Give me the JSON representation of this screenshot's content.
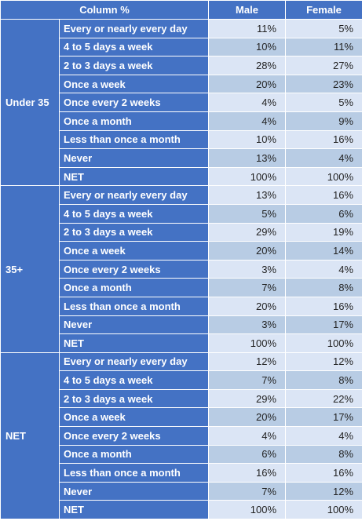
{
  "chart_data": {
    "type": "table",
    "corner_label": "Column %",
    "columns": [
      "Male",
      "Female"
    ],
    "groups": [
      {
        "name": "Under 35",
        "rows": [
          {
            "label": "Every or nearly every day",
            "values": [
              "11%",
              "5%"
            ]
          },
          {
            "label": "4 to 5 days a week",
            "values": [
              "10%",
              "11%"
            ]
          },
          {
            "label": "2 to 3 days a week",
            "values": [
              "28%",
              "27%"
            ]
          },
          {
            "label": "Once a week",
            "values": [
              "20%",
              "23%"
            ]
          },
          {
            "label": "Once every 2 weeks",
            "values": [
              "4%",
              "5%"
            ]
          },
          {
            "label": "Once a month",
            "values": [
              "4%",
              "9%"
            ]
          },
          {
            "label": "Less than once a month",
            "values": [
              "10%",
              "16%"
            ]
          },
          {
            "label": "Never",
            "values": [
              "13%",
              "4%"
            ]
          },
          {
            "label": "NET",
            "values": [
              "100%",
              "100%"
            ]
          }
        ]
      },
      {
        "name": "35+",
        "rows": [
          {
            "label": "Every or nearly every day",
            "values": [
              "13%",
              "16%"
            ]
          },
          {
            "label": "4 to 5 days a week",
            "values": [
              "5%",
              "6%"
            ]
          },
          {
            "label": "2 to 3 days a week",
            "values": [
              "29%",
              "19%"
            ]
          },
          {
            "label": "Once a week",
            "values": [
              "20%",
              "14%"
            ]
          },
          {
            "label": "Once every 2 weeks",
            "values": [
              "3%",
              "4%"
            ]
          },
          {
            "label": "Once a month",
            "values": [
              "7%",
              "8%"
            ]
          },
          {
            "label": "Less than once a month",
            "values": [
              "20%",
              "16%"
            ]
          },
          {
            "label": "Never",
            "values": [
              "3%",
              "17%"
            ]
          },
          {
            "label": "NET",
            "values": [
              "100%",
              "100%"
            ]
          }
        ]
      },
      {
        "name": "NET",
        "rows": [
          {
            "label": "Every or nearly every day",
            "values": [
              "12%",
              "12%"
            ]
          },
          {
            "label": "4 to 5 days a week",
            "values": [
              "7%",
              "8%"
            ]
          },
          {
            "label": "2 to 3 days a week",
            "values": [
              "29%",
              "22%"
            ]
          },
          {
            "label": "Once a week",
            "values": [
              "20%",
              "17%"
            ]
          },
          {
            "label": "Once every 2 weeks",
            "values": [
              "4%",
              "4%"
            ]
          },
          {
            "label": "Once a month",
            "values": [
              "6%",
              "8%"
            ]
          },
          {
            "label": "Less than once a month",
            "values": [
              "16%",
              "16%"
            ]
          },
          {
            "label": "Never",
            "values": [
              "7%",
              "12%"
            ]
          },
          {
            "label": "NET",
            "values": [
              "100%",
              "100%"
            ]
          }
        ]
      }
    ],
    "colors": {
      "header": "#4472c4",
      "band_light": "#dbe5f5",
      "band_dark": "#b8cce4"
    }
  }
}
